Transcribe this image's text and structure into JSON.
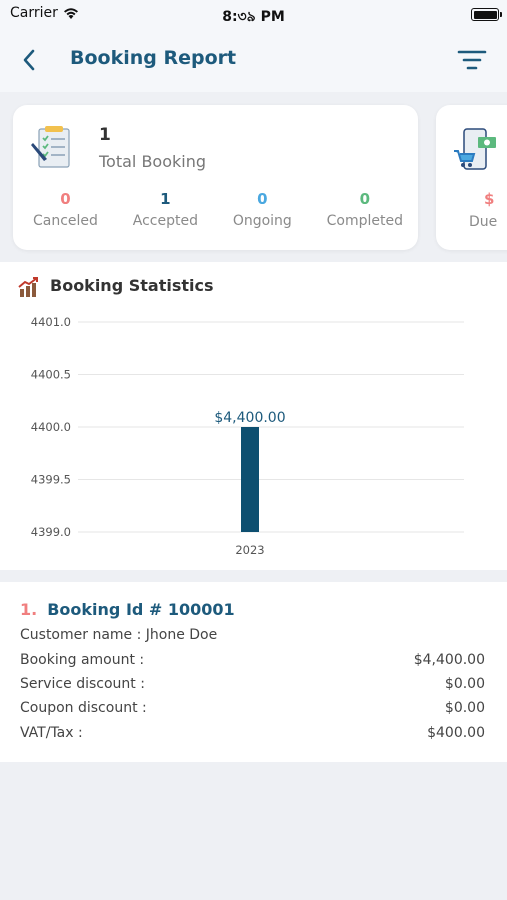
{
  "status_bar": {
    "carrier": "Carrier",
    "time": "8:৩৯ PM"
  },
  "header": {
    "title": "Booking Report",
    "back_icon": "chevron-left-icon",
    "filter_icon": "filter-icon"
  },
  "summary": {
    "total_value": "1",
    "total_label": "Total Booking",
    "stats": [
      {
        "value": "0",
        "label": "Canceled",
        "color": "#f07f7f"
      },
      {
        "value": "1",
        "label": "Accepted",
        "color": "#1d5a7c"
      },
      {
        "value": "0",
        "label": "Ongoing",
        "color": "#4aa8e0"
      },
      {
        "value": "0",
        "label": "Completed",
        "color": "#5cb97e"
      }
    ],
    "due_card": {
      "value": "$",
      "label": "Due"
    }
  },
  "statistics": {
    "title": "Booking Statistics",
    "icon": "chart-growth-icon"
  },
  "chart_data": {
    "type": "bar",
    "categories": [
      "2023"
    ],
    "values": [
      4400.0
    ],
    "data_labels": [
      "$4,400.00"
    ],
    "ylim": [
      4399.0,
      4401.0
    ],
    "yticks": [
      "4401.0",
      "4400.5",
      "4400.0",
      "4399.5",
      "4399.0"
    ],
    "grid": true,
    "bar_color": "#0d4f70"
  },
  "booking": {
    "number": "1.",
    "id_text": "Booking Id # 100001",
    "customer": "Customer name : Jhone Doe",
    "rows": [
      {
        "label": "Booking amount :",
        "value": "$4,400.00"
      },
      {
        "label": "Service discount :",
        "value": "$0.00"
      },
      {
        "label": "Coupon discount :",
        "value": "$0.00"
      },
      {
        "label": "VAT/Tax :",
        "value": "$400.00"
      }
    ]
  }
}
